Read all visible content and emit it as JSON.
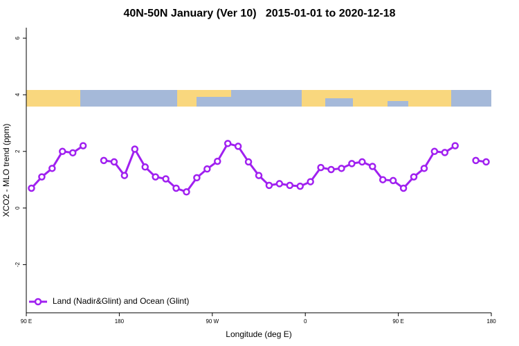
{
  "chart_data": {
    "type": "line",
    "title": "40N-50N January (Ver 10)   2015-01-01 to 2020-12-18",
    "x_label": "Longitude (deg E)",
    "y_label": "XCO2 - MLO trend (ppm)",
    "x": [
      95,
      105,
      115,
      125,
      135,
      145,
      155,
      165,
      175,
      185,
      195,
      205,
      215,
      225,
      235,
      245,
      255,
      265,
      275,
      285,
      295,
      305,
      315,
      325,
      335,
      345,
      355,
      365,
      375,
      385,
      395,
      405,
      415,
      425,
      435,
      445,
      455,
      465,
      475,
      485,
      495,
      505,
      515,
      525,
      535
    ],
    "series": [
      {
        "name": "Land (Nadir&Glint) and Ocean (Glint)",
        "color": "#a020f0",
        "values": [
          0.7,
          1.1,
          1.4,
          2.0,
          1.95,
          2.2,
          null,
          1.68,
          1.63,
          1.15,
          2.08,
          1.45,
          1.1,
          1.03,
          0.7,
          0.57,
          1.07,
          1.38,
          1.65,
          2.28,
          2.18,
          1.63,
          1.15,
          0.8,
          0.86,
          0.8,
          0.77,
          0.93,
          1.43,
          1.36,
          1.4,
          1.57,
          1.63,
          1.47,
          1.0,
          0.97,
          0.7,
          1.1,
          1.4,
          2.0,
          1.96,
          2.2,
          null,
          1.68,
          1.63
        ]
      }
    ],
    "xlim": [
      90,
      540
    ],
    "xticks": [
      {
        "value": 90,
        "label": "90 E"
      },
      180,
      {
        "value": 270,
        "label": "90 W"
      },
      {
        "value": 360,
        "label": "0"
      },
      {
        "value": 450,
        "label": "90 E"
      },
      {
        "value": 540,
        "label": "180"
      }
    ],
    "ylim": [
      -3.7,
      6.37
    ],
    "yticks": [
      -2,
      0,
      2,
      4,
      6
    ],
    "legend": "bottomleft"
  }
}
